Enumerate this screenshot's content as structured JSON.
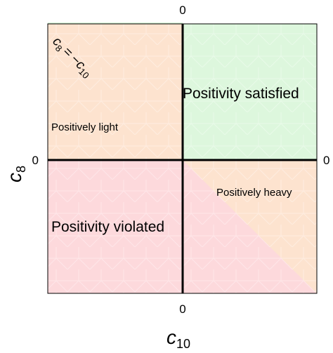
{
  "colors": {
    "satisfied_region": "#ddf7dd",
    "light_region": "#fde3cf",
    "heavy_region": "#fde3cf",
    "violated_region": "#fdd9dc",
    "axis": "#000000",
    "frame": "#000000"
  },
  "axes": {
    "x_label_main": "c",
    "x_label_sub": "10",
    "y_label_main": "c",
    "y_label_sub": "8",
    "tick_top": "0",
    "tick_bottom": "0",
    "tick_left": "0",
    "tick_right": "0"
  },
  "regions": {
    "satisfied": "Positivity satisfied",
    "light": "Positively light",
    "heavy": "Positively heavy",
    "violated": "Positivity violated"
  },
  "boundary_label": {
    "lhs_main": "c",
    "lhs_sub": "8",
    "equals": "=",
    "rhs_main": "−c",
    "rhs_sub": "10"
  }
}
